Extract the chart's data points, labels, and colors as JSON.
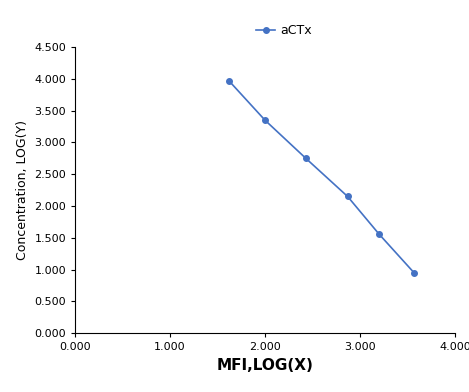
{
  "x": [
    1.62,
    2.0,
    2.43,
    2.87,
    3.2,
    3.57
  ],
  "y": [
    3.97,
    3.35,
    2.75,
    2.15,
    1.56,
    0.95
  ],
  "line_color": "#4472C4",
  "marker": "o",
  "marker_size": 4,
  "xlabel": "MFI,LOG(X)",
  "ylabel": "Concentration, LOG(Y)",
  "legend_label": "aCTx",
  "xlim": [
    0.0,
    4.0
  ],
  "ylim": [
    0.0,
    4.5
  ],
  "xticks": [
    0.0,
    1.0,
    2.0,
    3.0,
    4.0
  ],
  "yticks": [
    0.0,
    0.5,
    1.0,
    1.5,
    2.0,
    2.5,
    3.0,
    3.5,
    4.0,
    4.5
  ],
  "background_color": "#ffffff",
  "xlabel_fontsize": 11,
  "ylabel_fontsize": 9,
  "legend_fontsize": 9,
  "tick_fontsize": 8
}
